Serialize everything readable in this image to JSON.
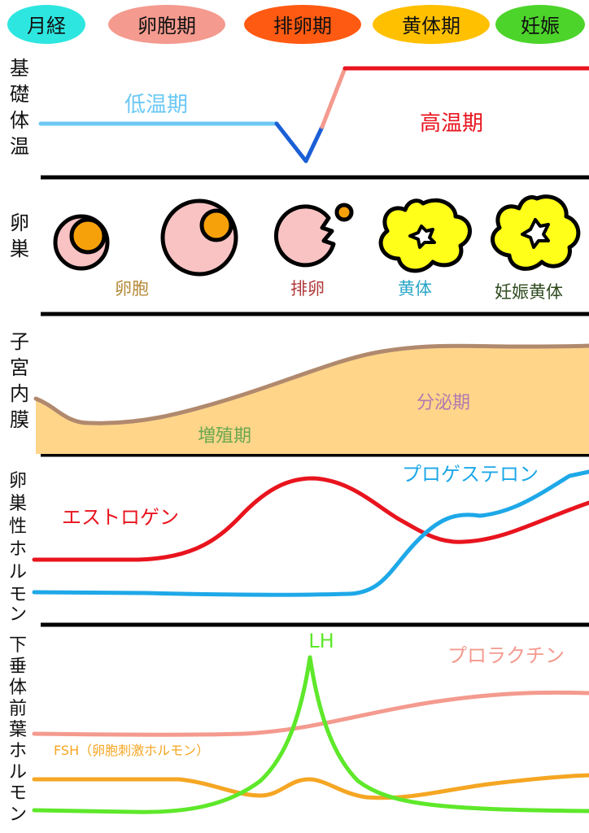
{
  "phases": [
    {
      "label": "月経",
      "color": "#2ee6e0"
    },
    {
      "label": "卵胞期",
      "color": "#f49a8e"
    },
    {
      "label": "排卵期",
      "color": "#ff5a12"
    },
    {
      "label": "黄体期",
      "color": "#ffc000"
    },
    {
      "label": "妊娠",
      "color": "#4cd42a"
    }
  ],
  "rows": {
    "bbt": {
      "label": [
        "基",
        "礎",
        "体",
        "温"
      ],
      "low": "低温期",
      "high": "高温期"
    },
    "ovary": {
      "label": [
        "卵",
        "巣"
      ],
      "follicle": "卵胞",
      "ovulation": "排卵",
      "corpus_luteum": "黄体",
      "pregnancy_corpus_luteum": "妊娠黄体"
    },
    "endometrium": {
      "label": [
        "子",
        "宮",
        "内",
        "膜"
      ],
      "proliferative": "増殖期",
      "secretory": "分泌期"
    },
    "ovarian_hormones": {
      "label": [
        "卵",
        "巣",
        "性",
        "ホ",
        "ル",
        "モ",
        "ン"
      ],
      "estrogen": "エストロゲン",
      "progesterone": "プロゲステロン"
    },
    "pituitary_hormones": {
      "label": [
        "下",
        "垂",
        "体",
        "前",
        "葉",
        "ホ",
        "ル",
        "モ",
        "ン"
      ],
      "lh": "LH",
      "prolactin": "プロラクチン",
      "fsh": "FSH（卵胞刺激ホルモン）"
    }
  },
  "colors": {
    "low_temp": "#6cc8f4",
    "high_temp": "#e8141e",
    "estrogen": "#e8141e",
    "progesterone": "#1ea8e8",
    "lh": "#5ee82a",
    "prolactin": "#f49a8e",
    "fsh": "#f5a623",
    "endometrium_fill": "#ffd58a",
    "endometrium_edge": "#b0896e",
    "follicle_fill": "#f9c3c3",
    "oocyte": "#f7a10a",
    "corpus_luteum": "#ffff1a"
  }
}
